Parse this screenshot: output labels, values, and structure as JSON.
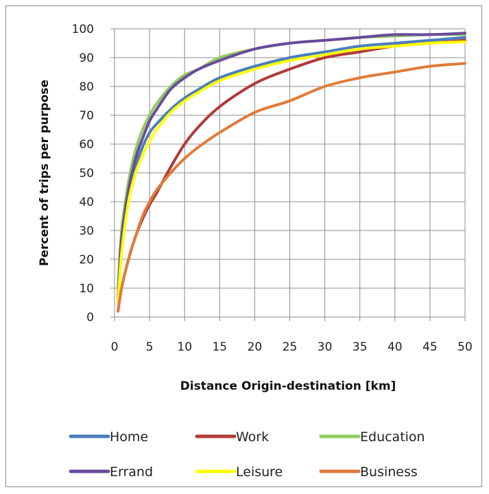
{
  "chart_data": {
    "type": "line",
    "xlabel": "Distance Origin-destination [km]",
    "ylabel": "Percent of trips per purpose",
    "xlim": [
      0,
      50
    ],
    "ylim": [
      0,
      100
    ],
    "xticks": [
      0,
      5,
      10,
      15,
      20,
      25,
      30,
      35,
      40,
      45,
      50
    ],
    "yticks": [
      0,
      10,
      20,
      30,
      40,
      50,
      60,
      70,
      80,
      90,
      100
    ],
    "grid": true,
    "legend_position": "bottom",
    "x": [
      0.5,
      1,
      2,
      3,
      4,
      5,
      6,
      8,
      10,
      12,
      15,
      20,
      25,
      30,
      35,
      40,
      45,
      50
    ],
    "series": [
      {
        "name": "Home",
        "color": "#4a7ebb",
        "values": [
          5,
          25,
          42,
          52,
          59,
          64,
          67,
          72,
          76,
          79,
          83,
          87,
          90,
          92,
          94,
          95,
          96,
          97
        ]
      },
      {
        "name": "Work",
        "color": "#b03a3a",
        "values": [
          2,
          10,
          20,
          28,
          34,
          39,
          43,
          52,
          60,
          66,
          73,
          81,
          86,
          90,
          92,
          94,
          95,
          96
        ]
      },
      {
        "name": "Education",
        "color": "#8dcc5e",
        "values": [
          10,
          30,
          47,
          58,
          65,
          70,
          74,
          80,
          84,
          86,
          90,
          93,
          95,
          96,
          97,
          97.5,
          98,
          98
        ]
      },
      {
        "name": "Errand",
        "color": "#6a4a9c",
        "values": [
          7,
          27,
          44,
          55,
          62,
          68,
          72,
          79,
          83,
          86,
          89,
          93,
          95,
          96,
          97,
          98,
          98,
          98.5
        ]
      },
      {
        "name": "Leisure",
        "color": "#ffff00",
        "values": [
          5,
          22,
          40,
          50,
          56,
          61,
          65,
          71,
          75,
          78,
          82,
          86,
          89,
          91,
          93,
          94,
          95,
          95.5
        ]
      },
      {
        "name": "Business",
        "color": "#e07b39",
        "values": [
          2,
          10,
          20,
          28,
          35,
          40,
          44,
          50,
          55,
          59,
          64,
          71,
          75,
          80,
          83,
          85,
          87,
          88
        ]
      }
    ]
  }
}
